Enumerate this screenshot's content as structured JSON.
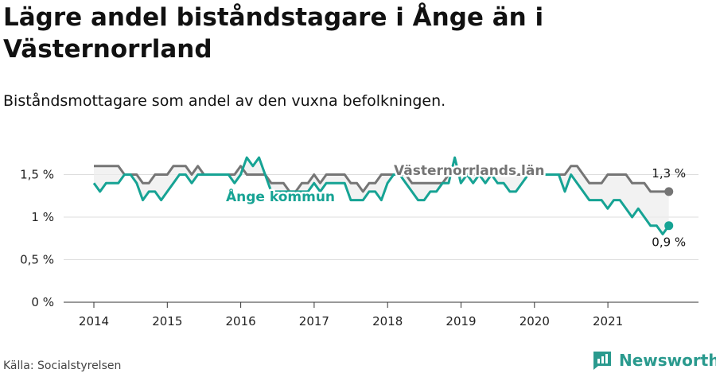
{
  "title": "Lägre andel biståndstagare i Ånge än i Västernorrland",
  "subtitle": "Biståndsmottagare som andel av den vuxna befolkningen.",
  "source": "Källa: Socialstyrelsen",
  "brand": "Newsworthy",
  "colors": {
    "ange": "#16a394",
    "lan": "#757575",
    "grid": "#dddddd",
    "band": "#ececec"
  },
  "chart_data": {
    "type": "line",
    "ylim": [
      0,
      1.9
    ],
    "y_ticks": [
      0,
      0.5,
      1,
      1.5
    ],
    "y_tick_labels": [
      "0 %",
      "0,5 %",
      "1 %",
      "1,5 %"
    ],
    "x_ticks": [
      2014,
      2015,
      2016,
      2017,
      2018,
      2019,
      2020,
      2021
    ],
    "x_tick_labels": [
      "2014",
      "2015",
      "2016",
      "2017",
      "2018",
      "2019",
      "2020",
      "2021"
    ],
    "series": [
      {
        "name": "Ånge kommun",
        "start": 2014.0,
        "step": 0.0833,
        "values": [
          1.4,
          1.3,
          1.4,
          1.4,
          1.4,
          1.5,
          1.5,
          1.4,
          1.2,
          1.3,
          1.3,
          1.2,
          1.3,
          1.4,
          1.5,
          1.5,
          1.4,
          1.5,
          1.5,
          1.5,
          1.5,
          1.5,
          1.5,
          1.4,
          1.5,
          1.7,
          1.6,
          1.7,
          1.5,
          1.3,
          1.3,
          1.3,
          1.3,
          1.3,
          1.3,
          1.3,
          1.4,
          1.3,
          1.4,
          1.4,
          1.4,
          1.4,
          1.2,
          1.2,
          1.2,
          1.3,
          1.3,
          1.2,
          1.4,
          1.5,
          1.5,
          1.4,
          1.3,
          1.2,
          1.2,
          1.3,
          1.3,
          1.4,
          1.4,
          1.7,
          1.4,
          1.5,
          1.4,
          1.5,
          1.4,
          1.5,
          1.4,
          1.4,
          1.3,
          1.3,
          1.4,
          1.5,
          1.5,
          1.5,
          1.5,
          1.5,
          1.5,
          1.3,
          1.5,
          1.4,
          1.3,
          1.2,
          1.2,
          1.2,
          1.1,
          1.2,
          1.2,
          1.1,
          1.0,
          1.1,
          1.0,
          0.9,
          0.9,
          0.8,
          0.9
        ],
        "end_label": "0,9 %"
      },
      {
        "name": "Västernorrlands län",
        "start": 2014.0,
        "step": 0.0833,
        "values": [
          1.6,
          1.6,
          1.6,
          1.6,
          1.6,
          1.5,
          1.5,
          1.5,
          1.4,
          1.4,
          1.5,
          1.5,
          1.5,
          1.6,
          1.6,
          1.6,
          1.5,
          1.6,
          1.5,
          1.5,
          1.5,
          1.5,
          1.5,
          1.5,
          1.6,
          1.5,
          1.5,
          1.5,
          1.5,
          1.4,
          1.4,
          1.4,
          1.3,
          1.3,
          1.4,
          1.4,
          1.5,
          1.4,
          1.5,
          1.5,
          1.5,
          1.5,
          1.4,
          1.4,
          1.3,
          1.4,
          1.4,
          1.5,
          1.5,
          1.5,
          1.5,
          1.5,
          1.4,
          1.4,
          1.4,
          1.4,
          1.4,
          1.4,
          1.5,
          1.5,
          1.5,
          1.5,
          1.5,
          1.5,
          1.5,
          1.5,
          1.5,
          1.5,
          1.5,
          1.5,
          1.5,
          1.5,
          1.5,
          1.5,
          1.5,
          1.5,
          1.5,
          1.5,
          1.6,
          1.6,
          1.5,
          1.4,
          1.4,
          1.4,
          1.5,
          1.5,
          1.5,
          1.5,
          1.4,
          1.4,
          1.4,
          1.3,
          1.3,
          1.3,
          1.3
        ],
        "end_label": "1,3 %"
      }
    ]
  }
}
